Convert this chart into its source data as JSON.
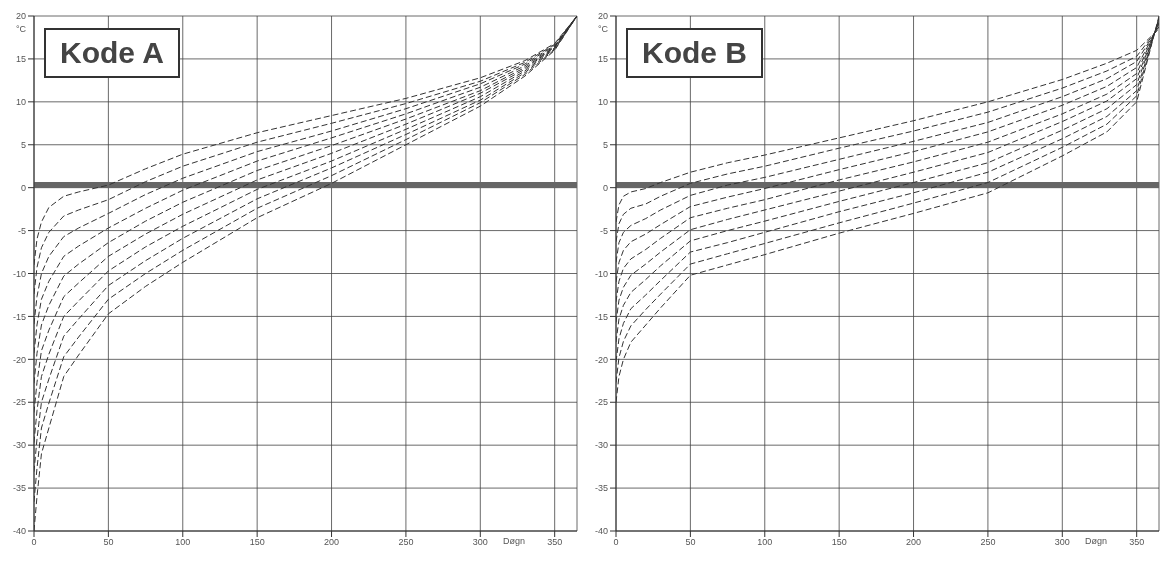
{
  "chart_data": [
    {
      "type": "line",
      "title": "Kode A",
      "xlabel": "Døgn",
      "ylabel": "°C",
      "line_style": "dashed",
      "grid": true,
      "xlim": [
        0,
        365
      ],
      "ylim": [
        -40,
        20
      ],
      "xticks": [
        0,
        50,
        100,
        150,
        200,
        250,
        300,
        350
      ],
      "yticks": [
        20,
        15,
        10,
        5,
        0,
        -5,
        -10,
        -15,
        -20,
        -25,
        -30,
        -35,
        -40
      ],
      "ref_lines": [
        {
          "axis": "y",
          "value": 0.3,
          "color": "#666666"
        }
      ],
      "x": [
        0,
        2,
        5,
        10,
        20,
        30,
        50,
        75,
        100,
        150,
        200,
        250,
        300,
        330,
        350,
        365
      ],
      "series": [
        {
          "color": "#333333",
          "values": [
            -9,
            -6,
            -4,
            -2.3,
            -1,
            -0.5,
            0.3,
            2.2,
            3.9,
            6.4,
            8.4,
            10.4,
            12.8,
            14.8,
            16.8,
            20
          ]
        },
        {
          "color": "#333333",
          "values": [
            -12.4,
            -9.3,
            -7,
            -5.2,
            -3.3,
            -2.6,
            -1.4,
            0.7,
            2.5,
            5.3,
            7.5,
            9.8,
            12.4,
            14.6,
            16.7,
            20
          ]
        },
        {
          "color": "#333333",
          "values": [
            -15.9,
            -12.7,
            -10,
            -8,
            -5.7,
            -4.7,
            -3,
            -0.8,
            1.1,
            4.2,
            6.6,
            9.2,
            12.1,
            14.4,
            16.6,
            20
          ]
        },
        {
          "color": "#333333",
          "values": [
            -19.3,
            -16,
            -13,
            -10.9,
            -8,
            -6.8,
            -4.7,
            -2.4,
            -0.3,
            3.1,
            5.8,
            8.6,
            11.7,
            14.2,
            16.5,
            20
          ]
        },
        {
          "color": "#333333",
          "values": [
            -22.8,
            -19.3,
            -16,
            -13.7,
            -10.3,
            -8.9,
            -6.4,
            -3.9,
            -1.7,
            2,
            4.9,
            8,
            11.3,
            14,
            16.4,
            20
          ]
        },
        {
          "color": "#333333",
          "values": [
            -26.2,
            -22.7,
            -19,
            -16.6,
            -12.7,
            -11.1,
            -8,
            -5.4,
            -3.1,
            0.9,
            4,
            7.4,
            11,
            13.8,
            16.4,
            20
          ]
        },
        {
          "color": "#333333",
          "values": [
            -29.7,
            -26,
            -22,
            -19.4,
            -15,
            -13.2,
            -9.7,
            -6.9,
            -4.5,
            -0.2,
            3.1,
            6.8,
            10.6,
            13.6,
            16.3,
            20
          ]
        },
        {
          "color": "#333333",
          "values": [
            -33.1,
            -29.3,
            -25,
            -22.3,
            -17.3,
            -15.3,
            -11.4,
            -8.5,
            -5.9,
            -1.3,
            2.3,
            6.2,
            10.2,
            13.4,
            16.2,
            20
          ]
        },
        {
          "color": "#333333",
          "values": [
            -36.6,
            -32.7,
            -28,
            -25.1,
            -19.7,
            -17.4,
            -13,
            -10,
            -7.3,
            -2.4,
            1.4,
            5.6,
            9.9,
            13.2,
            16.1,
            20
          ]
        },
        {
          "color": "#333333",
          "values": [
            -40,
            -36,
            -31,
            -28,
            -22,
            -19.5,
            -14.7,
            -11.5,
            -8.7,
            -3.5,
            0.5,
            5,
            9.5,
            13,
            16,
            20
          ]
        }
      ]
    },
    {
      "type": "line",
      "title": "Kode B",
      "xlabel": "Døgn",
      "ylabel": "°C",
      "line_style": "dashed",
      "grid": true,
      "xlim": [
        0,
        365
      ],
      "ylim": [
        -40,
        20
      ],
      "xticks": [
        0,
        50,
        100,
        150,
        200,
        250,
        300,
        350
      ],
      "yticks": [
        20,
        15,
        10,
        5,
        0,
        -5,
        -10,
        -15,
        -20,
        -25,
        -30,
        -35,
        -40
      ],
      "ref_lines": [
        {
          "axis": "y",
          "value": 0.3,
          "color": "#666666"
        }
      ],
      "x": [
        0,
        2,
        5,
        10,
        20,
        30,
        50,
        75,
        100,
        150,
        200,
        250,
        300,
        330,
        350,
        365
      ],
      "series": [
        {
          "color": "#333333",
          "values": [
            -4,
            -2,
            -1,
            -0.5,
            -0.1,
            0.6,
            1.8,
            2.9,
            3.8,
            5.8,
            7.8,
            10,
            12.6,
            14.5,
            16,
            18.5
          ]
        },
        {
          "color": "#333333",
          "values": [
            -6.3,
            -4.2,
            -3.1,
            -2.4,
            -1.9,
            -1,
            0.5,
            1.6,
            2.5,
            4.6,
            6.6,
            8.8,
            11.6,
            13.6,
            15.3,
            18.7
          ]
        },
        {
          "color": "#333333",
          "values": [
            -8.7,
            -6.4,
            -5.2,
            -4.4,
            -3.6,
            -2.6,
            -0.9,
            0.3,
            1.2,
            3.3,
            5.4,
            7.6,
            10.6,
            12.7,
            14.7,
            18.8
          ]
        },
        {
          "color": "#333333",
          "values": [
            -11,
            -8.7,
            -7.3,
            -6.3,
            -5.4,
            -4.3,
            -2.2,
            -1.1,
            -0.1,
            2.1,
            4.2,
            6.5,
            9.6,
            11.8,
            14,
            19
          ]
        },
        {
          "color": "#333333",
          "values": [
            -13.3,
            -10.9,
            -9.4,
            -8.3,
            -7.2,
            -5.9,
            -3.5,
            -2.4,
            -1.4,
            0.9,
            3,
            5.3,
            8.6,
            10.9,
            13.3,
            19.2
          ]
        },
        {
          "color": "#333333",
          "values": [
            -15.7,
            -13.1,
            -11.6,
            -10.2,
            -8.9,
            -7.5,
            -4.9,
            -3.7,
            -2.6,
            -0.4,
            1.8,
            4.1,
            7.7,
            10.1,
            12.7,
            19.3
          ]
        },
        {
          "color": "#333333",
          "values": [
            -18,
            -15.3,
            -13.7,
            -12.2,
            -10.7,
            -9.1,
            -6.2,
            -5,
            -3.9,
            -1.6,
            0.6,
            2.9,
            6.7,
            9.2,
            12,
            19.5
          ]
        },
        {
          "color": "#333333",
          "values": [
            -20.3,
            -17.6,
            -15.8,
            -14.1,
            -12.5,
            -10.8,
            -7.5,
            -6.4,
            -5.2,
            -2.8,
            -0.6,
            1.8,
            5.7,
            8.3,
            11.3,
            19.7
          ]
        },
        {
          "color": "#333333",
          "values": [
            -22.7,
            -19.8,
            -17.9,
            -16.1,
            -14.2,
            -12.4,
            -8.9,
            -7.7,
            -6.5,
            -4.1,
            -1.8,
            0.6,
            4.7,
            7.4,
            10.7,
            19.8
          ]
        },
        {
          "color": "#333333",
          "values": [
            -25,
            -22,
            -20,
            -18,
            -16,
            -14,
            -10.2,
            -9,
            -7.8,
            -5.3,
            -3,
            -0.6,
            3.7,
            6.5,
            10,
            20
          ]
        }
      ]
    }
  ]
}
